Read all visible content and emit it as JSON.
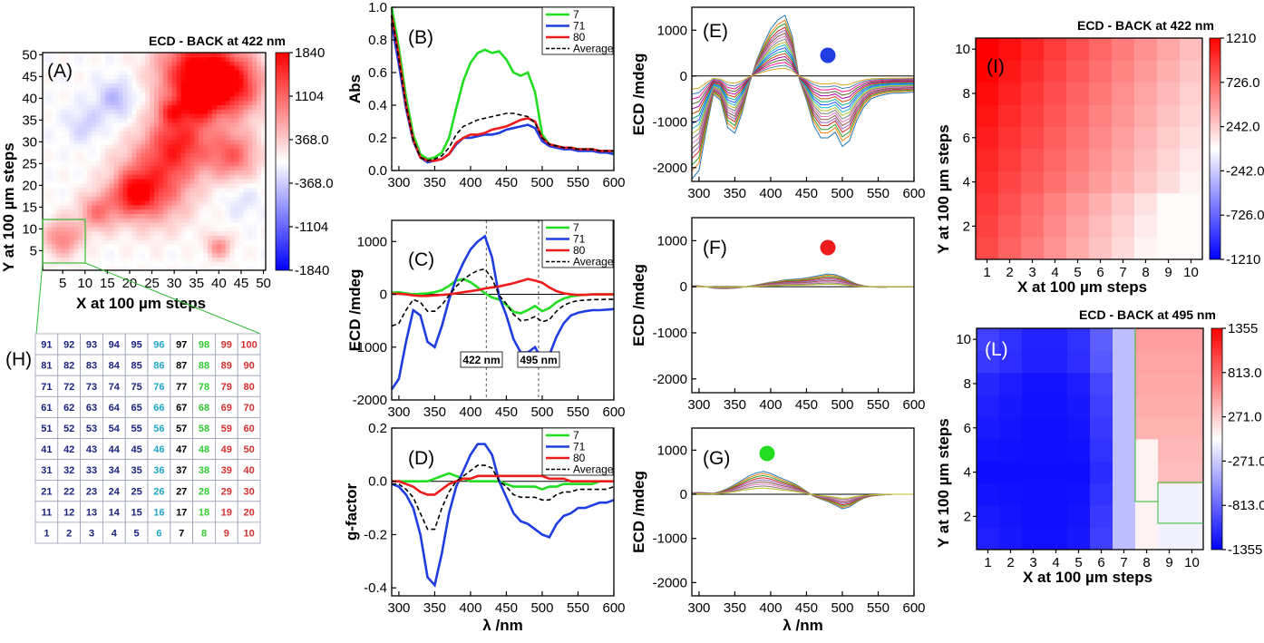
{
  "colors": {
    "red": "#ee1c1c",
    "blue": "#1f3de0",
    "green": "#22dd22",
    "black": "#000000",
    "navy": "#1a237e",
    "cyan": "#22a6c8",
    "dgreen": "#33cc33",
    "dred": "#d32f2f"
  },
  "labels": {
    "A": "(A)",
    "B": "(B)",
    "C": "(C)",
    "D": "(D)",
    "E": "(E)",
    "F": "(F)",
    "G": "(G)",
    "H": "(H)",
    "I": "(I)",
    "L": "(L)",
    "map_A_title": "ECD - BACK at 422 nm",
    "map_I_title": "ECD - BACK at 422 nm",
    "map_L_title": "ECD - BACK at 495 nm",
    "x_steps": "X at 100 µm steps",
    "y_steps": "Y at 100 µm steps",
    "abs": "Abs",
    "ecd": "ECD /mdeg",
    "gfac": "g-factor",
    "lambda": "λ /nm",
    "ann422": "422 nm",
    "ann495": "495 nm"
  },
  "legend": {
    "s7": "7",
    "s71": "71",
    "s80": "80",
    "avg": "Average"
  },
  "colorbar_A": [
    "1840",
    "1104",
    "368.0",
    "-368.0",
    "-1104",
    "-1840"
  ],
  "colorbar_I": [
    "1210",
    "726.0",
    "242.0",
    "-242.0",
    "-726.0",
    "-1210"
  ],
  "colorbar_L": [
    "1355",
    "813.0",
    "271.0",
    "-271.0",
    "-813.0",
    "-1355"
  ],
  "grid_H": {
    "rows": [
      [
        "91",
        "92",
        "93",
        "94",
        "95",
        "96",
        "97",
        "98",
        "99",
        "100"
      ],
      [
        "81",
        "82",
        "83",
        "84",
        "85",
        "86",
        "87",
        "88",
        "89",
        "90"
      ],
      [
        "71",
        "72",
        "73",
        "74",
        "75",
        "76",
        "77",
        "78",
        "79",
        "80"
      ],
      [
        "61",
        "62",
        "63",
        "64",
        "65",
        "66",
        "67",
        "68",
        "69",
        "70"
      ],
      [
        "51",
        "52",
        "53",
        "54",
        "55",
        "56",
        "57",
        "58",
        "59",
        "60"
      ],
      [
        "41",
        "42",
        "43",
        "44",
        "45",
        "46",
        "47",
        "48",
        "49",
        "50"
      ],
      [
        "31",
        "32",
        "33",
        "34",
        "35",
        "36",
        "37",
        "38",
        "39",
        "40"
      ],
      [
        "21",
        "22",
        "23",
        "24",
        "25",
        "26",
        "27",
        "28",
        "29",
        "30"
      ],
      [
        "11",
        "12",
        "13",
        "14",
        "15",
        "16",
        "17",
        "18",
        "19",
        "20"
      ],
      [
        "1",
        "2",
        "3",
        "4",
        "5",
        "6",
        "7",
        "8",
        "9",
        "10"
      ]
    ],
    "col_colors": [
      "navy",
      "navy",
      "navy",
      "navy",
      "navy",
      "cyan",
      "black",
      "dgreen",
      "dred",
      "dred"
    ]
  },
  "chart_data": [
    {
      "id": "A",
      "type": "heatmap",
      "title": "ECD - BACK at 422 nm",
      "xlabel": "X at 100 µm steps",
      "ylabel": "Y at 100 µm steps",
      "x_ticks": [
        5,
        10,
        15,
        20,
        25,
        30,
        35,
        40,
        45,
        50
      ],
      "y_ticks": [
        5,
        10,
        15,
        20,
        25,
        30,
        35,
        40,
        45,
        50
      ],
      "zlim": [
        -1840,
        1840
      ],
      "colorbar_ticks": [
        1840,
        1104,
        368.0,
        -368.0,
        -1104,
        -1840
      ]
    },
    {
      "id": "B",
      "type": "line",
      "xlabel": "",
      "ylabel": "Abs",
      "xlim": [
        290,
        600
      ],
      "ylim": [
        0,
        1.0
      ],
      "x": [
        290,
        300,
        310,
        320,
        330,
        340,
        350,
        360,
        370,
        380,
        390,
        400,
        410,
        420,
        430,
        440,
        450,
        460,
        470,
        480,
        490,
        500,
        510,
        520,
        530,
        540,
        550,
        560,
        570,
        580,
        590,
        600
      ],
      "series": [
        {
          "name": "7",
          "values": [
            1.0,
            0.75,
            0.45,
            0.22,
            0.1,
            0.07,
            0.08,
            0.11,
            0.2,
            0.38,
            0.55,
            0.66,
            0.72,
            0.74,
            0.72,
            0.73,
            0.68,
            0.6,
            0.58,
            0.6,
            0.48,
            0.22,
            0.16,
            0.15,
            0.14,
            0.14,
            0.13,
            0.13,
            0.13,
            0.12,
            0.12,
            0.11
          ]
        },
        {
          "name": "71",
          "values": [
            0.9,
            0.65,
            0.38,
            0.18,
            0.08,
            0.05,
            0.06,
            0.07,
            0.1,
            0.16,
            0.2,
            0.2,
            0.21,
            0.22,
            0.22,
            0.23,
            0.25,
            0.26,
            0.27,
            0.28,
            0.26,
            0.18,
            0.15,
            0.14,
            0.13,
            0.13,
            0.12,
            0.12,
            0.12,
            0.11,
            0.11,
            0.1
          ]
        },
        {
          "name": "80",
          "values": [
            0.95,
            0.7,
            0.4,
            0.19,
            0.08,
            0.06,
            0.06,
            0.07,
            0.1,
            0.17,
            0.2,
            0.22,
            0.22,
            0.23,
            0.25,
            0.26,
            0.27,
            0.29,
            0.31,
            0.32,
            0.3,
            0.2,
            0.16,
            0.15,
            0.14,
            0.14,
            0.13,
            0.13,
            0.13,
            0.12,
            0.12,
            0.12
          ]
        },
        {
          "name": "Average",
          "values": [
            0.95,
            0.68,
            0.4,
            0.19,
            0.08,
            0.06,
            0.07,
            0.09,
            0.14,
            0.22,
            0.27,
            0.29,
            0.31,
            0.32,
            0.33,
            0.34,
            0.35,
            0.35,
            0.34,
            0.33,
            0.29,
            0.2,
            0.16,
            0.15,
            0.14,
            0.14,
            0.13,
            0.13,
            0.13,
            0.12,
            0.12,
            0.12
          ]
        }
      ]
    },
    {
      "id": "C",
      "type": "line",
      "ylabel": "ECD /mdeg",
      "xlim": [
        290,
        600
      ],
      "ylim": [
        -2000,
        1400
      ],
      "annotations": [
        "422 nm",
        "495 nm"
      ],
      "x": [
        290,
        300,
        310,
        320,
        330,
        340,
        350,
        360,
        370,
        380,
        390,
        400,
        410,
        420,
        430,
        440,
        450,
        460,
        470,
        480,
        490,
        500,
        510,
        520,
        530,
        540,
        550,
        560,
        570,
        580,
        590,
        600
      ],
      "series": [
        {
          "name": "7",
          "values": [
            30,
            40,
            20,
            0,
            10,
            20,
            40,
            80,
            160,
            260,
            290,
            230,
            130,
            20,
            -60,
            -100,
            -200,
            -330,
            -360,
            -300,
            -220,
            -320,
            -260,
            -150,
            -80,
            -40,
            -20,
            -10,
            0,
            0,
            0,
            0
          ]
        },
        {
          "name": "71",
          "values": [
            -1800,
            -1600,
            -900,
            -300,
            -400,
            -900,
            -1000,
            -600,
            -100,
            300,
            600,
            850,
            1000,
            1100,
            700,
            -50,
            -400,
            -850,
            -1100,
            -1100,
            -1000,
            -1250,
            -1150,
            -800,
            -550,
            -400,
            -350,
            -320,
            -300,
            -300,
            -290,
            -280
          ]
        },
        {
          "name": "80",
          "values": [
            10,
            10,
            0,
            -20,
            -30,
            -30,
            -20,
            -10,
            0,
            20,
            40,
            60,
            80,
            110,
            130,
            150,
            180,
            210,
            250,
            290,
            260,
            220,
            130,
            60,
            20,
            0,
            -10,
            -10,
            0,
            0,
            0,
            0
          ]
        },
        {
          "name": "Average",
          "values": [
            -600,
            -550,
            -300,
            -100,
            -150,
            -320,
            -320,
            -200,
            -20,
            150,
            280,
            380,
            450,
            480,
            300,
            -20,
            -180,
            -380,
            -500,
            -480,
            -420,
            -520,
            -480,
            -320,
            -210,
            -150,
            -120,
            -110,
            -100,
            -100,
            -95,
            -95
          ]
        }
      ]
    },
    {
      "id": "D",
      "type": "line",
      "xlabel": "λ /nm",
      "ylabel": "g-factor",
      "xlim": [
        290,
        600
      ],
      "ylim": [
        -0.43,
        0.2
      ],
      "x": [
        290,
        300,
        310,
        320,
        330,
        340,
        350,
        360,
        370,
        380,
        390,
        400,
        410,
        420,
        430,
        440,
        450,
        460,
        470,
        480,
        490,
        500,
        510,
        520,
        530,
        540,
        550,
        560,
        570,
        580,
        590,
        600
      ],
      "series": [
        {
          "name": "7",
          "values": [
            0.0,
            0.0,
            0.0,
            0.0,
            0.0,
            0.0,
            0.01,
            0.02,
            0.03,
            0.02,
            0.01,
            0.0,
            0.0,
            0.0,
            0.0,
            0.0,
            -0.01,
            -0.02,
            -0.02,
            -0.02,
            -0.02,
            -0.03,
            -0.02,
            -0.02,
            -0.01,
            -0.01,
            -0.01,
            -0.01,
            -0.01,
            0.0,
            0.0,
            0.0
          ]
        },
        {
          "name": "71",
          "values": [
            -0.01,
            -0.02,
            -0.05,
            -0.1,
            -0.2,
            -0.36,
            -0.39,
            -0.27,
            -0.12,
            -0.02,
            0.04,
            0.1,
            0.14,
            0.14,
            0.1,
            0.0,
            -0.06,
            -0.12,
            -0.15,
            -0.16,
            -0.18,
            -0.2,
            -0.21,
            -0.16,
            -0.13,
            -0.12,
            -0.1,
            -0.1,
            -0.09,
            -0.08,
            -0.08,
            -0.07
          ]
        },
        {
          "name": "80",
          "values": [
            0.0,
            0.0,
            -0.01,
            -0.02,
            -0.04,
            -0.05,
            -0.05,
            -0.03,
            -0.01,
            0.0,
            0.01,
            0.01,
            0.02,
            0.02,
            0.02,
            0.02,
            0.02,
            0.02,
            0.02,
            0.02,
            0.02,
            0.02,
            0.01,
            0.01,
            0.01,
            0.0,
            0.0,
            0.0,
            0.0,
            0.0,
            0.0,
            0.0
          ]
        },
        {
          "name": "Average",
          "values": [
            -0.01,
            -0.01,
            -0.03,
            -0.06,
            -0.12,
            -0.18,
            -0.18,
            -0.1,
            -0.04,
            0.0,
            0.02,
            0.04,
            0.06,
            0.06,
            0.05,
            0.0,
            -0.02,
            -0.05,
            -0.06,
            -0.06,
            -0.06,
            -0.07,
            -0.07,
            -0.05,
            -0.04,
            -0.04,
            -0.03,
            -0.03,
            -0.03,
            -0.03,
            -0.03,
            -0.02
          ]
        }
      ]
    },
    {
      "id": "E",
      "type": "line",
      "ylabel": "ECD /mdeg",
      "xlim": [
        290,
        600
      ],
      "ylim": [
        -2300,
        1500
      ],
      "marker_color": "blue",
      "x": [
        290,
        300,
        310,
        320,
        330,
        340,
        350,
        360,
        370,
        380,
        390,
        400,
        410,
        420,
        430,
        440,
        450,
        460,
        470,
        480,
        490,
        500,
        510,
        520,
        530,
        540,
        550,
        560,
        570,
        580,
        590,
        600
      ],
      "base": [
        -1800,
        -1650,
        -950,
        -320,
        -420,
        -900,
        -1000,
        -650,
        -150,
        260,
        560,
        820,
        980,
        1060,
        700,
        -60,
        -420,
        -860,
        -1080,
        -1080,
        -980,
        -1230,
        -1130,
        -780,
        -540,
        -400,
        -350,
        -320,
        -300,
        -300,
        -290,
        -280
      ],
      "scales": [
        1.25,
        1.15,
        1.08,
        1.0,
        0.94,
        0.88,
        0.82,
        0.76,
        0.7,
        0.64,
        0.58,
        0.52,
        0.46,
        0.4,
        0.34,
        0.28,
        0.22,
        0.16
      ]
    },
    {
      "id": "F",
      "type": "line",
      "ylabel": "ECD /mdeg",
      "xlim": [
        290,
        600
      ],
      "ylim": [
        -2300,
        1500
      ],
      "marker_color": "red",
      "x": [
        290,
        300,
        310,
        320,
        330,
        340,
        350,
        360,
        370,
        380,
        390,
        400,
        410,
        420,
        430,
        440,
        450,
        460,
        470,
        480,
        490,
        500,
        510,
        520,
        530,
        540,
        550,
        560,
        570,
        580,
        590,
        600
      ],
      "base": [
        20,
        20,
        0,
        -30,
        -40,
        -40,
        -30,
        -10,
        10,
        40,
        70,
        100,
        120,
        150,
        160,
        170,
        190,
        220,
        250,
        280,
        260,
        210,
        130,
        60,
        20,
        0,
        -10,
        -10,
        0,
        0,
        0,
        0
      ],
      "scales": [
        1.0,
        0.9,
        0.8,
        0.7,
        0.6,
        0.5,
        0.4,
        0.3,
        0.2
      ]
    },
    {
      "id": "G",
      "type": "line",
      "xlabel": "λ /nm",
      "ylabel": "ECD /mdeg",
      "xlim": [
        290,
        600
      ],
      "ylim": [
        -2300,
        1500
      ],
      "marker_color": "green",
      "x": [
        290,
        300,
        310,
        320,
        330,
        340,
        350,
        360,
        370,
        380,
        390,
        400,
        410,
        420,
        430,
        440,
        450,
        460,
        470,
        480,
        490,
        500,
        510,
        520,
        530,
        540,
        550,
        560,
        570,
        580,
        590,
        600
      ],
      "base": [
        30,
        40,
        30,
        20,
        60,
        120,
        200,
        290,
        380,
        440,
        470,
        430,
        360,
        300,
        240,
        160,
        60,
        -40,
        -100,
        -150,
        -220,
        -300,
        -260,
        -160,
        -80,
        -40,
        -20,
        -10,
        0,
        0,
        0,
        0
      ],
      "scales": [
        1.1,
        1.0,
        0.9,
        0.8,
        0.7,
        0.6,
        0.5,
        0.4,
        0.3
      ]
    },
    {
      "id": "I",
      "type": "heatmap",
      "title": "ECD - BACK at 422 nm",
      "xlabel": "X at 100 µm steps",
      "ylabel": "Y at 100 µm steps",
      "x_ticks": [
        1,
        2,
        3,
        4,
        5,
        6,
        7,
        8,
        9,
        10
      ],
      "y_ticks": [
        2,
        4,
        6,
        8,
        10
      ],
      "zlim": [
        -1210,
        1210
      ],
      "colorbar_ticks": [
        1210,
        726.0,
        242.0,
        -242.0,
        -726.0,
        -1210
      ]
    },
    {
      "id": "L",
      "type": "heatmap",
      "title": "ECD - BACK at 495 nm",
      "xlabel": "X at 100 µm steps",
      "ylabel": "Y at 100 µm steps",
      "x_ticks": [
        1,
        2,
        3,
        4,
        5,
        6,
        7,
        8,
        9,
        10
      ],
      "y_ticks": [
        2,
        4,
        6,
        8,
        10
      ],
      "zlim": [
        -1355,
        1355
      ],
      "colorbar_ticks": [
        1355,
        813.0,
        271.0,
        -271.0,
        -813.0,
        -1355
      ]
    }
  ]
}
